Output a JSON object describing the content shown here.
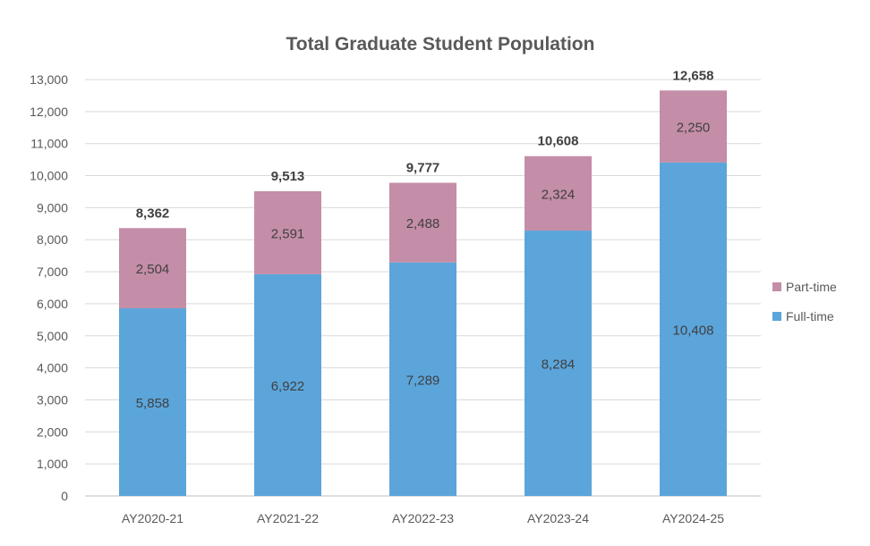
{
  "chart_data": {
    "type": "bar",
    "stacked": true,
    "title": "Total Graduate Student Population",
    "xlabel": "",
    "ylabel": "",
    "categories": [
      "AY2020-21",
      "AY2021-22",
      "AY2022-23",
      "AY2023-24",
      "AY2024-25"
    ],
    "series": [
      {
        "name": "Full-time",
        "color": "#5BA5DB",
        "values": [
          5858,
          6922,
          7289,
          8284,
          10408
        ],
        "labels": [
          "5,858",
          "6,922",
          "7,289",
          "8,284",
          "10,408"
        ]
      },
      {
        "name": "Part-time",
        "color": "#C48DA8",
        "values": [
          2504,
          2591,
          2488,
          2324,
          2250
        ],
        "labels": [
          "2,504",
          "2,591",
          "2,488",
          "2,324",
          "2,250"
        ]
      }
    ],
    "totals": [
      8362,
      9513,
      9777,
      10608,
      12658
    ],
    "total_labels": [
      "8,362",
      "9,513",
      "9,777",
      "10,608",
      "12,658"
    ],
    "ylim": [
      0,
      13000
    ],
    "yticks": [
      0,
      1000,
      2000,
      3000,
      4000,
      5000,
      6000,
      7000,
      8000,
      9000,
      10000,
      11000,
      12000,
      13000
    ],
    "ytick_labels": [
      "0",
      "1,000",
      "2,000",
      "3,000",
      "4,000",
      "5,000",
      "6,000",
      "7,000",
      "8,000",
      "9,000",
      "10,000",
      "11,000",
      "12,000",
      "13,000"
    ],
    "grid": true,
    "legend": {
      "position": "right",
      "entries": [
        "Part-time",
        "Full-time"
      ]
    }
  }
}
